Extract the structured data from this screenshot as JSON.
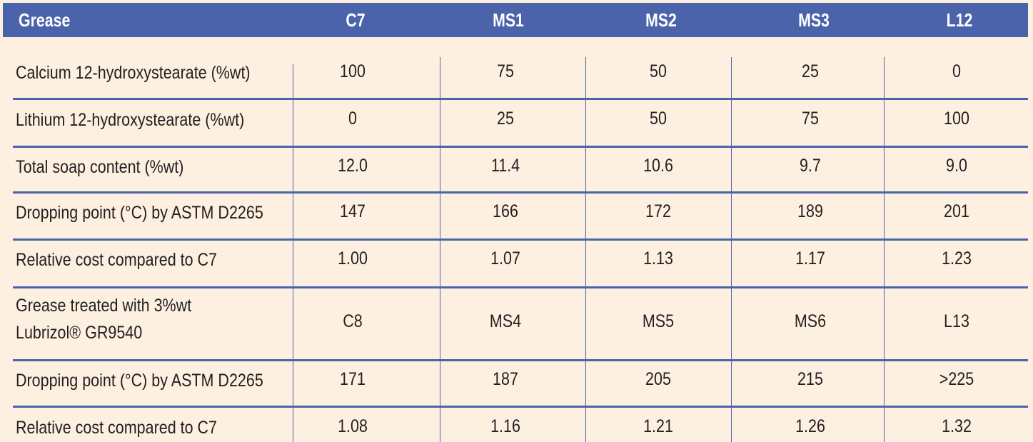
{
  "header": {
    "first": "Grease",
    "columns": [
      "C7",
      "MS1",
      "MS2",
      "MS3",
      "L12"
    ]
  },
  "rows": [
    {
      "label": "Calcium 12-hydroxystearate (%wt)",
      "values": [
        "100",
        "75",
        "50",
        "25",
        "0"
      ]
    },
    {
      "label": "Lithium 12-hydroxystearate (%wt)",
      "values": [
        "0",
        "25",
        "50",
        "75",
        "100"
      ]
    },
    {
      "label": "Total soap content (%wt)",
      "values": [
        "12.0",
        "11.4",
        "10.6",
        "9.7",
        "9.0"
      ]
    },
    {
      "label": "Dropping point (°C) by ASTM D2265",
      "values": [
        "147",
        "166",
        "172",
        "189",
        "201"
      ]
    },
    {
      "label": "Relative cost compared to C7",
      "values": [
        "1.00",
        "1.07",
        "1.13",
        "1.17",
        "1.23"
      ]
    },
    {
      "label_line1": "Grease treated with 3%wt",
      "label_line2": "Lubrizol® GR9540",
      "values": [
        "C8",
        "MS4",
        "MS5",
        "MS6",
        "L13"
      ]
    },
    {
      "label": "Dropping point (°C) by ASTM D2265",
      "values": [
        "171",
        "187",
        "205",
        "215",
        ">225"
      ]
    },
    {
      "label": "Relative cost compared to C7",
      "values": [
        "1.08",
        "1.16",
        "1.21",
        "1.26",
        "1.32"
      ]
    }
  ],
  "colors": {
    "header_bg": "#4a63ab",
    "page_bg": "#fdf0e0",
    "rule": "#4a63ab"
  }
}
